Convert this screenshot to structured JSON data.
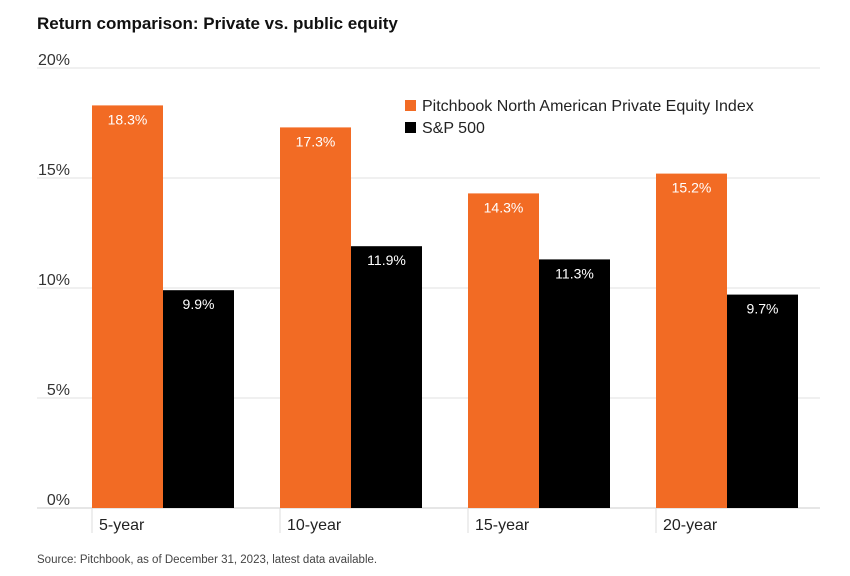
{
  "chart_data": {
    "type": "bar",
    "title": "Return comparison: Private vs. public equity",
    "categories": [
      "5-year",
      "10-year",
      "15-year",
      "20-year"
    ],
    "series": [
      {
        "name": "Pitchbook North American Private Equity Index",
        "values": [
          18.3,
          17.3,
          14.3,
          15.2
        ],
        "labels": [
          "18.3%",
          "17.3%",
          "14.3%",
          "15.2%"
        ],
        "color": "#F26B24"
      },
      {
        "name": "S&P 500",
        "values": [
          9.9,
          11.9,
          11.3,
          9.7
        ],
        "labels": [
          "9.9%",
          "11.9%",
          "11.3%",
          "9.7%"
        ],
        "color": "#000000"
      }
    ],
    "yticks": [
      0,
      5,
      10,
      15,
      20
    ],
    "ytick_labels": [
      "0%",
      "5%",
      "10%",
      "15%",
      "20%"
    ],
    "ylim": [
      0,
      20
    ],
    "grid": true,
    "legend_position": "top-right",
    "xlabel": "",
    "ylabel": ""
  },
  "source": "Source: Pitchbook, as of December 31, 2023, latest data available."
}
